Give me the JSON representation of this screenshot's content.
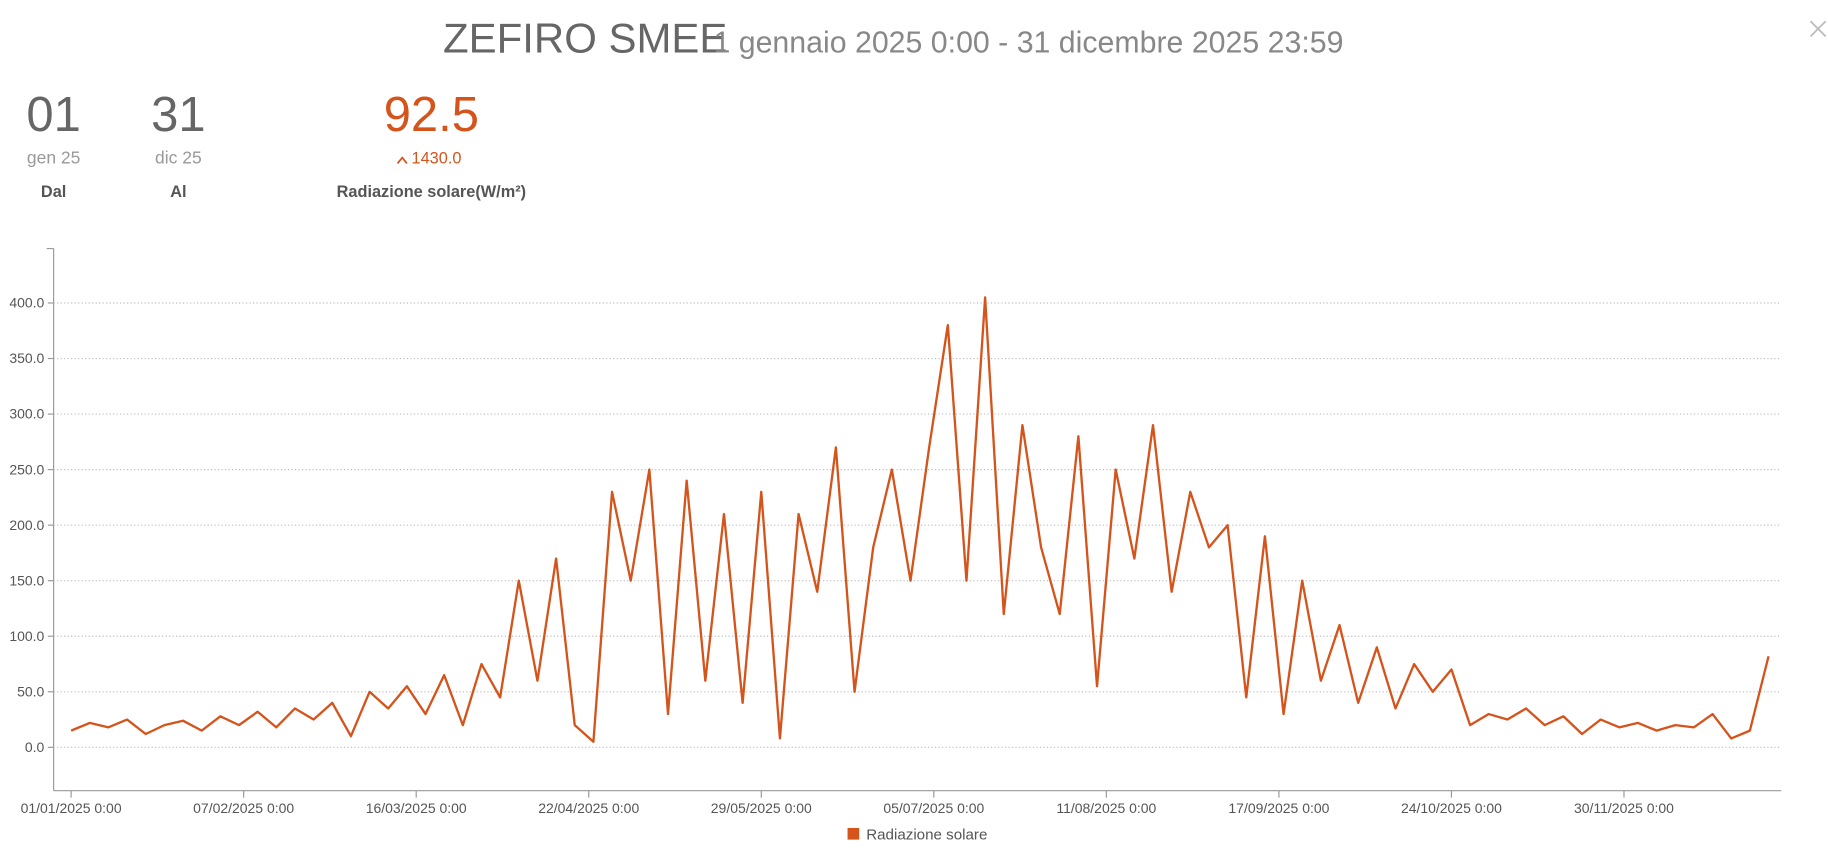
{
  "header": {
    "title": "ZEFIRO SMEE",
    "subtitle": "1 gennaio 2025 0:00 - 31 dicembre 2025 23:59"
  },
  "stats": [
    {
      "value": "01",
      "sub": "gen 25",
      "label": "Dal"
    },
    {
      "value": "31",
      "sub": "dic 25",
      "label": "Al"
    },
    {
      "value": "92.5",
      "sub": "1430.0",
      "label": "Radiazione solare(W/m²)"
    }
  ],
  "chart_data": {
    "type": "line",
    "x": [
      "01/01/2025",
      "05/01/2025",
      "09/01/2025",
      "13/01/2025",
      "17/01/2025",
      "21/01/2025",
      "25/01/2025",
      "29/01/2025",
      "02/02/2025",
      "06/02/2025",
      "10/02/2025",
      "14/02/2025",
      "18/02/2025",
      "22/02/2025",
      "26/02/2025",
      "02/03/2025",
      "06/03/2025",
      "10/03/2025",
      "14/03/2025",
      "18/03/2025",
      "22/03/2025",
      "26/03/2025",
      "30/03/2025",
      "03/04/2025",
      "07/04/2025",
      "11/04/2025",
      "15/04/2025",
      "19/04/2025",
      "23/04/2025",
      "27/04/2025",
      "01/05/2025",
      "05/05/2025",
      "09/05/2025",
      "13/05/2025",
      "17/05/2025",
      "21/05/2025",
      "25/05/2025",
      "29/05/2025",
      "02/06/2025",
      "06/06/2025",
      "10/06/2025",
      "14/06/2025",
      "18/06/2025",
      "22/06/2025",
      "26/06/2025",
      "30/06/2025",
      "04/07/2025",
      "08/07/2025",
      "12/07/2025",
      "16/07/2025",
      "20/07/2025",
      "24/07/2025",
      "28/07/2025",
      "01/08/2025",
      "05/08/2025",
      "09/08/2025",
      "13/08/2025",
      "17/08/2025",
      "21/08/2025",
      "25/08/2025",
      "29/08/2025",
      "02/09/2025",
      "06/09/2025",
      "10/09/2025",
      "14/09/2025",
      "18/09/2025",
      "22/09/2025",
      "26/09/2025",
      "30/09/2025",
      "04/10/2025",
      "08/10/2025",
      "12/10/2025",
      "16/10/2025",
      "20/10/2025",
      "24/10/2025",
      "28/10/2025",
      "01/11/2025",
      "05/11/2025",
      "09/11/2025",
      "13/11/2025",
      "17/11/2025",
      "21/11/2025",
      "25/11/2025",
      "29/11/2025",
      "03/12/2025",
      "07/12/2025",
      "11/12/2025",
      "15/12/2025",
      "19/12/2025",
      "23/12/2025",
      "27/12/2025",
      "31/12/2025"
    ],
    "series": [
      {
        "name": "Radiazione solare",
        "color": "#d4541c",
        "values": [
          15,
          22,
          18,
          25,
          12,
          20,
          24,
          15,
          28,
          20,
          32,
          18,
          35,
          25,
          40,
          10,
          50,
          35,
          55,
          30,
          65,
          20,
          75,
          45,
          150,
          60,
          170,
          20,
          5,
          230,
          150,
          250,
          30,
          240,
          60,
          210,
          40,
          230,
          8,
          210,
          140,
          270,
          50,
          180,
          250,
          150,
          270,
          380,
          150,
          405,
          120,
          290,
          180,
          120,
          280,
          55,
          250,
          170,
          290,
          140,
          230,
          180,
          200,
          45,
          190,
          30,
          150,
          60,
          110,
          40,
          90,
          35,
          75,
          50,
          70,
          20,
          30,
          25,
          35,
          20,
          28,
          12,
          25,
          18,
          22,
          15,
          20,
          18,
          30,
          8,
          15,
          82
        ]
      }
    ],
    "xticks": [
      "01/01/2025 0:00",
      "07/02/2025 0:00",
      "16/03/2025 0:00",
      "22/04/2025 0:00",
      "29/05/2025 0:00",
      "05/07/2025 0:00",
      "11/08/2025 0:00",
      "17/09/2025 0:00",
      "24/10/2025 0:00",
      "30/11/2025 0:00"
    ],
    "ylim": [
      -39,
      449
    ],
    "yticks": [
      {
        "value": 0,
        "label": "0.0"
      },
      {
        "value": 50,
        "label": "50.0"
      },
      {
        "value": 100,
        "label": "100.0"
      },
      {
        "value": 150,
        "label": "150.0"
      },
      {
        "value": 200,
        "label": "200.0"
      },
      {
        "value": 250,
        "label": "250.0"
      },
      {
        "value": 300,
        "label": "300.0"
      },
      {
        "value": 350,
        "label": "350.0"
      },
      {
        "value": 400,
        "label": "400.0"
      }
    ],
    "grid": true
  }
}
